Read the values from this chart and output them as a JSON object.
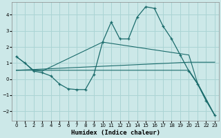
{
  "xlabel": "Humidex (Indice chaleur)",
  "bg_color": "#cce8e8",
  "grid_color": "#aad4d4",
  "line_color": "#1a6b6b",
  "xlim": [
    -0.5,
    23.5
  ],
  "ylim": [
    -2.6,
    4.8
  ],
  "x_ticks": [
    0,
    1,
    2,
    3,
    4,
    5,
    6,
    7,
    8,
    9,
    10,
    11,
    12,
    13,
    14,
    15,
    16,
    17,
    18,
    19,
    20,
    21,
    22,
    23
  ],
  "y_ticks": [
    -2,
    -1,
    0,
    1,
    2,
    3,
    4
  ],
  "line1_x": [
    0,
    1,
    2,
    3,
    4,
    5,
    6,
    7,
    8,
    9,
    10,
    11,
    12,
    13,
    14,
    15,
    16,
    17,
    18,
    19,
    20,
    21,
    22,
    23
  ],
  "line1_y": [
    1.4,
    1.0,
    0.5,
    0.4,
    0.2,
    -0.3,
    -0.6,
    -0.65,
    -0.65,
    0.3,
    2.3,
    3.55,
    2.5,
    2.5,
    3.85,
    4.5,
    4.4,
    3.3,
    2.5,
    1.5,
    0.5,
    -0.3,
    -1.35,
    -2.25
  ],
  "line2_x": [
    0,
    1,
    2,
    3,
    10,
    20,
    21,
    23
  ],
  "line2_y": [
    1.4,
    1.0,
    0.55,
    0.5,
    2.3,
    1.5,
    -0.25,
    -2.25
  ],
  "line3_x": [
    0,
    20,
    23
  ],
  "line3_y": [
    0.55,
    1.05,
    1.05
  ],
  "line4_x": [
    0,
    20,
    21,
    23
  ],
  "line4_y": [
    0.55,
    0.55,
    -0.25,
    -2.25
  ]
}
